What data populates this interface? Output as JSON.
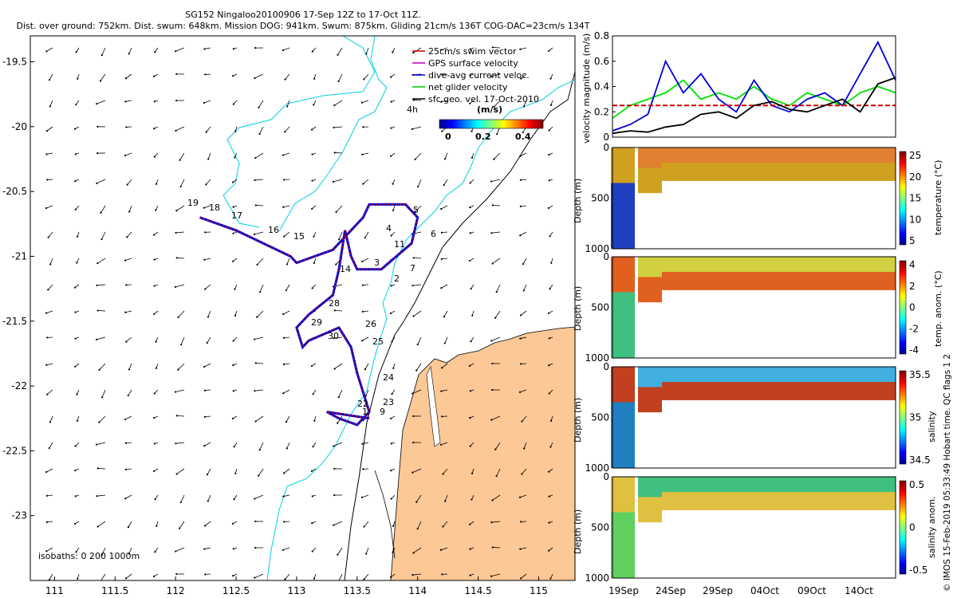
{
  "header": {
    "line1": "SG152 Ningaloo20100906 17-Sep 12Z to 17-Oct 11Z.",
    "line2": "Dist. over ground: 752km. Dist. swum: 648km. Mission DOG: 941km. Swum: 875km. Gliding 21cm/s 136T COG-DAC=23cm/s 134T"
  },
  "map": {
    "x_ticks": [
      "111",
      "111.5",
      "112",
      "112.5",
      "113",
      "113.5",
      "114",
      "114.5",
      "115"
    ],
    "y_ticks": [
      "-19.5",
      "-20",
      "-20.5",
      "-21",
      "-21.5",
      "-22",
      "-22.5",
      "-23"
    ],
    "xlim": [
      110.8,
      115.3
    ],
    "ylim": [
      -23.5,
      -19.3
    ],
    "legend": [
      {
        "label": "25cm/s swim vector",
        "color": "#d40000"
      },
      {
        "label": "GPS surface velocity",
        "color": "#c000c0"
      },
      {
        "label": "dive-avg current veloc.",
        "color": "#0000d8"
      },
      {
        "label": "net glider velocity",
        "color": "#00c800"
      },
      {
        "label": "sfc.geo. vel. 17-Oct-2010",
        "color": "#000000"
      }
    ],
    "scale_label": "4h",
    "colorbar_title": "(m/s)",
    "colorbar_ticks": [
      "0",
      "0.2",
      "0.4"
    ],
    "isobaths": "isobaths: 0   200  1000m",
    "day_labels": [
      "2",
      "3",
      "4",
      "5",
      "6",
      "7",
      "11",
      "14",
      "15",
      "16",
      "17",
      "18",
      "19",
      "22",
      "23",
      "24",
      "25",
      "26",
      "28",
      "29",
      "30",
      "1",
      "9"
    ],
    "land_color": "#fbc896",
    "contour_color": "#00d0e8"
  },
  "panels": {
    "velocity": {
      "ylabel": "velocity magnitude (m/s)",
      "y_ticks": [
        "0",
        "0.2",
        "0.4",
        "0.6",
        "0.8"
      ]
    },
    "temperature": {
      "ylabel": "Depth (m)",
      "cbar_label": "temperature (°C)",
      "cbar_ticks": [
        "25",
        "20",
        "15",
        "10",
        "5"
      ],
      "y_ticks": [
        "0",
        "500",
        "1000"
      ]
    },
    "temp_anom": {
      "ylabel": "Depth (m)",
      "cbar_label": "temp. anom. (°C)",
      "cbar_ticks": [
        "4",
        "2",
        "0",
        "-2",
        "-4"
      ],
      "y_ticks": [
        "0",
        "500",
        "1000"
      ]
    },
    "salinity": {
      "ylabel": "Depth (m)",
      "cbar_label": "salinity",
      "cbar_ticks": [
        "35.5",
        "35",
        "34.5"
      ],
      "y_ticks": [
        "0",
        "500",
        "1000"
      ]
    },
    "sal_anom": {
      "ylabel": "Depth (m)",
      "cbar_label": "salinity anom.",
      "cbar_ticks": [
        "0.5",
        "0",
        "-0.5"
      ],
      "y_ticks": [
        "0",
        "500",
        "1000"
      ]
    },
    "x_ticks": [
      "19Sep",
      "24Sep",
      "29Sep",
      "04Oct",
      "09Oct",
      "14Oct"
    ]
  },
  "footer": "© IMOS 15-Feb-2019 05:33:49 Hobart time. QC flags 1  2",
  "chart_data": [
    {
      "type": "scatter",
      "title": "SG152 Ningaloo20100906 17-Sep 12Z to 17-Oct 11Z.",
      "xlabel": "",
      "ylabel": "",
      "xlim": [
        110.8,
        115.3
      ],
      "ylim": [
        -23.5,
        -19.3
      ],
      "series": [
        {
          "name": "glider track",
          "x": [
            112.2,
            112.5,
            112.95,
            113.0,
            113.3,
            113.55,
            113.6,
            113.9,
            114.0,
            113.95,
            113.7,
            113.5,
            113.45,
            113.4,
            113.35,
            113.3,
            113.1,
            113.0,
            113.05,
            113.1,
            113.35,
            113.45,
            113.5,
            113.55,
            113.6,
            113.5,
            113.35,
            113.25,
            113.6
          ],
          "y": [
            -20.7,
            -20.8,
            -21.0,
            -21.05,
            -20.95,
            -20.7,
            -20.6,
            -20.6,
            -20.7,
            -20.9,
            -21.1,
            -21.1,
            -21.0,
            -20.8,
            -21.1,
            -21.3,
            -21.45,
            -21.55,
            -21.7,
            -21.65,
            -21.55,
            -21.7,
            -21.9,
            -22.05,
            -22.2,
            -22.3,
            -22.25,
            -22.2,
            -22.25
          ]
        }
      ]
    },
    {
      "type": "line",
      "ylabel": "velocity magnitude (m/s)",
      "ylim": [
        0,
        0.8
      ],
      "x_ticks": [
        "19Sep",
        "24Sep",
        "29Sep",
        "04Oct",
        "09Oct",
        "14Oct"
      ],
      "series": [
        {
          "x": [
            0,
            4,
            8,
            12,
            16,
            20,
            24,
            28,
            32
          ],
          "y": [
            0.25,
            0.25,
            0.25,
            0.25,
            0.25,
            0.25,
            0.25,
            0.25,
            0.25
          ]
        },
        {
          "x": [
            0,
            2,
            4,
            6,
            8,
            10,
            12,
            14,
            16,
            18,
            20,
            22,
            24,
            26,
            28,
            30,
            32
          ],
          "y": [
            0.03,
            0.05,
            0.04,
            0.08,
            0.1,
            0.18,
            0.2,
            0.15,
            0.25,
            0.28,
            0.22,
            0.2,
            0.25,
            0.3,
            0.2,
            0.42,
            0.47
          ]
        },
        {
          "x": [
            0,
            2,
            4,
            6,
            8,
            10,
            12,
            14,
            16,
            18,
            20,
            22,
            24,
            26,
            28,
            30,
            32
          ],
          "y": [
            0.05,
            0.1,
            0.18,
            0.6,
            0.35,
            0.5,
            0.3,
            0.2,
            0.45,
            0.25,
            0.2,
            0.3,
            0.35,
            0.25,
            0.5,
            0.75,
            0.45
          ]
        },
        {
          "x": [
            0,
            2,
            4,
            6,
            8,
            10,
            12,
            14,
            16,
            18,
            20,
            22,
            24,
            26,
            28,
            30,
            32
          ],
          "y": [
            0.15,
            0.25,
            0.3,
            0.35,
            0.45,
            0.3,
            0.35,
            0.3,
            0.4,
            0.3,
            0.25,
            0.35,
            0.3,
            0.25,
            0.35,
            0.4,
            0.35
          ]
        }
      ]
    }
  ]
}
